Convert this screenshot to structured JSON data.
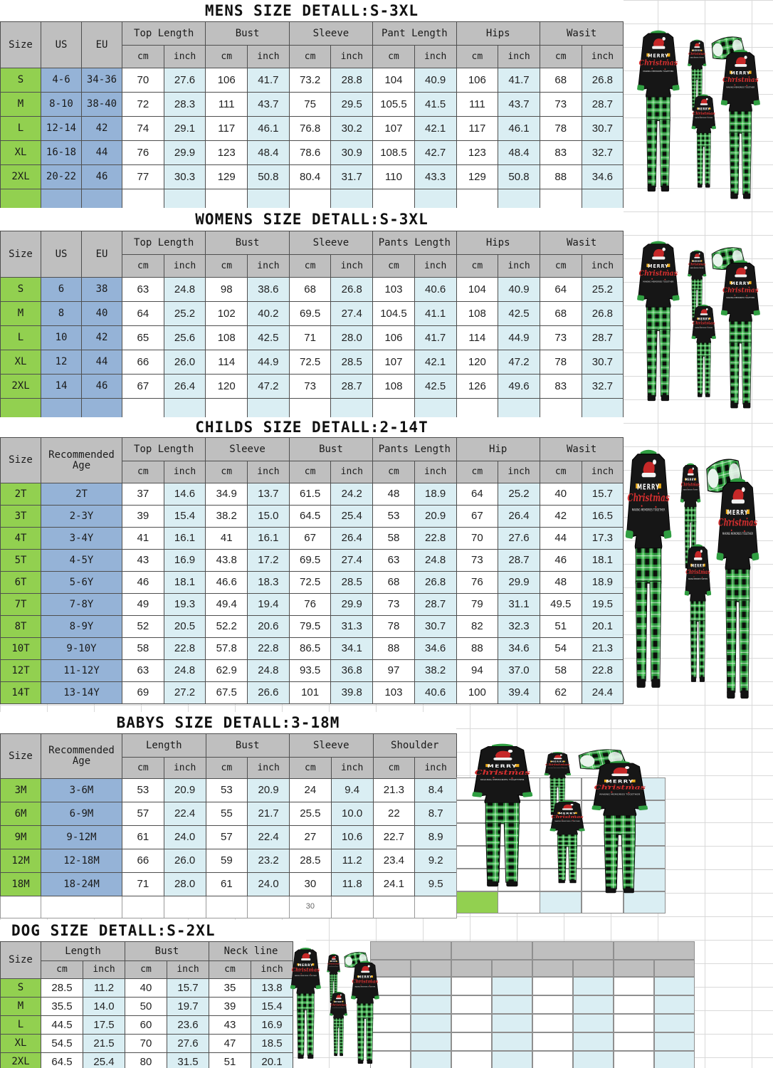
{
  "colors": {
    "header_gray": "#bfbfbf",
    "size_col_green": "#92d050",
    "us_eu_col_blue": "#95b3d7",
    "inch_col_blue": "#daeef3",
    "grid_line": "#d9d9d9",
    "pajama_black": "#161616",
    "plaid_green": "#2e9f41",
    "santa_hat_red": "#c62828"
  },
  "tables": [
    {
      "id": "mens",
      "title": "MENS SIZE DETALL:S-3XL",
      "left_headers": [
        "Size",
        "US",
        "EU"
      ],
      "groups": [
        "Top Length",
        "Bust",
        "Sleeve",
        "Pant Length",
        "Hips",
        "Wasit"
      ],
      "sub_headers": [
        "cm",
        "inch"
      ],
      "rows": [
        [
          "S",
          "4-6",
          "34-36",
          "70",
          "27.6",
          "106",
          "41.7",
          "73.2",
          "28.8",
          "104",
          "40.9",
          "106",
          "41.7",
          "68",
          "26.8"
        ],
        [
          "M",
          "8-10",
          "38-40",
          "72",
          "28.3",
          "111",
          "43.7",
          "75",
          "29.5",
          "105.5",
          "41.5",
          "111",
          "43.7",
          "73",
          "28.7"
        ],
        [
          "L",
          "12-14",
          "42",
          "74",
          "29.1",
          "117",
          "46.1",
          "76.8",
          "30.2",
          "107",
          "42.1",
          "117",
          "46.1",
          "78",
          "30.7"
        ],
        [
          "XL",
          "16-18",
          "44",
          "76",
          "29.9",
          "123",
          "48.4",
          "78.6",
          "30.9",
          "108.5",
          "42.7",
          "123",
          "48.4",
          "83",
          "32.7"
        ],
        [
          "2XL",
          "20-22",
          "46",
          "77",
          "30.3",
          "129",
          "50.8",
          "80.4",
          "31.7",
          "110",
          "43.3",
          "129",
          "50.8",
          "88",
          "34.6"
        ]
      ],
      "empty_row": "colored",
      "footer_value": ""
    },
    {
      "id": "womens",
      "title": "WOMENS SIZE DETALL:S-3XL",
      "left_headers": [
        "Size",
        "US",
        "EU"
      ],
      "groups": [
        "Top Length",
        "Bust",
        "Sleeve",
        "Pants Length",
        "Hips",
        "Wasit"
      ],
      "sub_headers": [
        "cm",
        "inch"
      ],
      "rows": [
        [
          "S",
          "6",
          "38",
          "63",
          "24.8",
          "98",
          "38.6",
          "68",
          "26.8",
          "103",
          "40.6",
          "104",
          "40.9",
          "64",
          "25.2"
        ],
        [
          "M",
          "8",
          "40",
          "64",
          "25.2",
          "102",
          "40.2",
          "69.5",
          "27.4",
          "104.5",
          "41.1",
          "108",
          "42.5",
          "68",
          "26.8"
        ],
        [
          "L",
          "10",
          "42",
          "65",
          "25.6",
          "108",
          "42.5",
          "71",
          "28.0",
          "106",
          "41.7",
          "114",
          "44.9",
          "73",
          "28.7"
        ],
        [
          "XL",
          "12",
          "44",
          "66",
          "26.0",
          "114",
          "44.9",
          "72.5",
          "28.5",
          "107",
          "42.1",
          "120",
          "47.2",
          "78",
          "30.7"
        ],
        [
          "2XL",
          "14",
          "46",
          "67",
          "26.4",
          "120",
          "47.2",
          "73",
          "28.7",
          "108",
          "42.5",
          "126",
          "49.6",
          "83",
          "32.7"
        ]
      ],
      "empty_row": "colored",
      "footer_value": ""
    },
    {
      "id": "childs",
      "title": "CHILDS SIZE DETALL:2-14T",
      "left_headers": [
        "Size",
        "Recommended Age"
      ],
      "groups": [
        "Top Length",
        "Sleeve",
        "Bust",
        "Pants Length",
        "Hip",
        "Wasit"
      ],
      "sub_headers": [
        "cm",
        "inch"
      ],
      "rows": [
        [
          "2T",
          "2T",
          "37",
          "14.6",
          "34.9",
          "13.7",
          "61.5",
          "24.2",
          "48",
          "18.9",
          "64",
          "25.2",
          "40",
          "15.7"
        ],
        [
          "3T",
          "2-3Y",
          "39",
          "15.4",
          "38.2",
          "15.0",
          "64.5",
          "25.4",
          "53",
          "20.9",
          "67",
          "26.4",
          "42",
          "16.5"
        ],
        [
          "4T",
          "3-4Y",
          "41",
          "16.1",
          "41",
          "16.1",
          "67",
          "26.4",
          "58",
          "22.8",
          "70",
          "27.6",
          "44",
          "17.3"
        ],
        [
          "5T",
          "4-5Y",
          "43",
          "16.9",
          "43.8",
          "17.2",
          "69.5",
          "27.4",
          "63",
          "24.8",
          "73",
          "28.7",
          "46",
          "18.1"
        ],
        [
          "6T",
          "5-6Y",
          "46",
          "18.1",
          "46.6",
          "18.3",
          "72.5",
          "28.5",
          "68",
          "26.8",
          "76",
          "29.9",
          "48",
          "18.9"
        ],
        [
          "7T",
          "7-8Y",
          "49",
          "19.3",
          "49.4",
          "19.4",
          "76",
          "29.9",
          "73",
          "28.7",
          "79",
          "31.1",
          "49.5",
          "19.5"
        ],
        [
          "8T",
          "8-9Y",
          "52",
          "20.5",
          "52.2",
          "20.6",
          "79.5",
          "31.3",
          "78",
          "30.7",
          "82",
          "32.3",
          "51",
          "20.1"
        ],
        [
          "10T",
          "9-10Y",
          "58",
          "22.8",
          "57.8",
          "22.8",
          "86.5",
          "34.1",
          "88",
          "34.6",
          "88",
          "34.6",
          "54",
          "21.3"
        ],
        [
          "12T",
          "11-12Y",
          "63",
          "24.8",
          "62.9",
          "24.8",
          "93.5",
          "36.8",
          "97",
          "38.2",
          "94",
          "37.0",
          "58",
          "22.8"
        ],
        [
          "14T",
          "13-14Y",
          "69",
          "27.2",
          "67.5",
          "26.6",
          "101",
          "39.8",
          "103",
          "40.6",
          "100",
          "39.4",
          "62",
          "24.4"
        ]
      ],
      "empty_row": "",
      "footer_value": ""
    },
    {
      "id": "babys",
      "title": "BABYS SIZE DETALL:3-18M",
      "left_headers": [
        "Size",
        "Recommended Age"
      ],
      "groups": [
        "Length",
        "Bust",
        "Sleeve",
        "Shoulder"
      ],
      "sub_headers": [
        "cm",
        "inch"
      ],
      "rows": [
        [
          "3M",
          "3-6M",
          "53",
          "20.9",
          "53",
          "20.9",
          "24",
          "9.4",
          "21.3",
          "8.4"
        ],
        [
          "6M",
          "6-9M",
          "57",
          "22.4",
          "55",
          "21.7",
          "25.5",
          "10.0",
          "22",
          "8.7"
        ],
        [
          "9M",
          "9-12M",
          "61",
          "24.0",
          "57",
          "22.4",
          "27",
          "10.6",
          "22.7",
          "8.9"
        ],
        [
          "12M",
          "12-18M",
          "66",
          "26.0",
          "59",
          "23.2",
          "28.5",
          "11.2",
          "23.4",
          "9.2"
        ],
        [
          "18M",
          "18-24M",
          "71",
          "28.0",
          "61",
          "24.0",
          "30",
          "11.8",
          "24.1",
          "9.5"
        ]
      ],
      "empty_row": "plain",
      "footer_value": "30"
    },
    {
      "id": "dog",
      "title": "DOG SIZE DETALL:S-2XL",
      "left_headers": [
        "Size"
      ],
      "groups": [
        "Length",
        "Bust",
        "Neck line"
      ],
      "sub_headers": [
        "cm",
        "inch"
      ],
      "rows": [
        [
          "S",
          "28.5",
          "11.2",
          "40",
          "15.7",
          "35",
          "13.8"
        ],
        [
          "M",
          "35.5",
          "14.0",
          "50",
          "19.7",
          "39",
          "15.4"
        ],
        [
          "L",
          "44.5",
          "17.5",
          "60",
          "23.6",
          "43",
          "16.9"
        ],
        [
          "XL",
          "54.5",
          "21.5",
          "70",
          "27.6",
          "47",
          "18.5"
        ],
        [
          "2XL",
          "64.5",
          "25.4",
          "80",
          "31.5",
          "51",
          "20.1"
        ]
      ],
      "empty_row": "",
      "footer_value": ""
    }
  ]
}
